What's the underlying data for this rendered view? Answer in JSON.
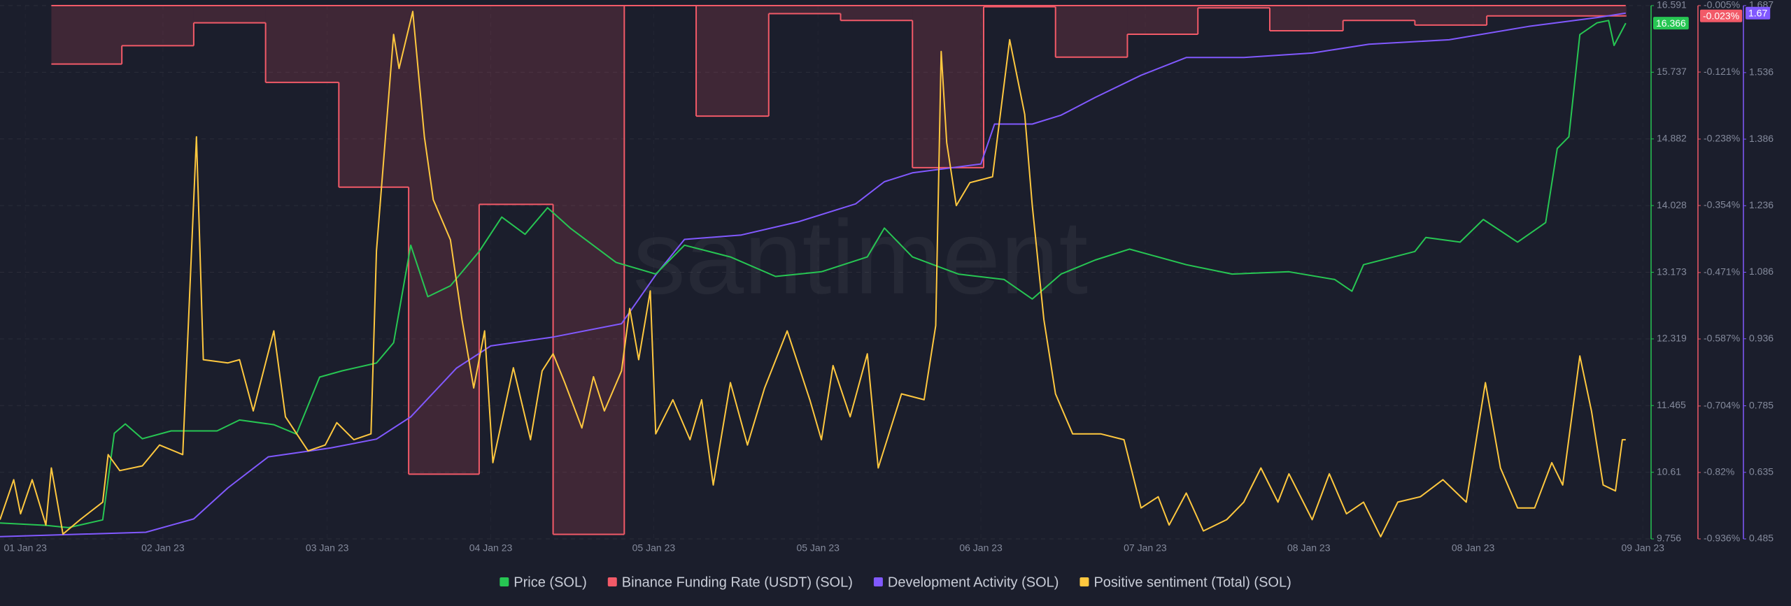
{
  "chart_data": {
    "type": "line",
    "watermark": "santiment",
    "xlim": [
      0,
      241
    ],
    "xticks": [
      {
        "value": 3.7,
        "label": "01 Jan 23"
      },
      {
        "value": 23.8,
        "label": "02 Jan 23"
      },
      {
        "value": 47.8,
        "label": "03 Jan 23"
      },
      {
        "value": 71.7,
        "label": "04 Jan 23"
      },
      {
        "value": 95.5,
        "label": "05 Jan 23"
      },
      {
        "value": 119.5,
        "label": "05 Jan 23"
      },
      {
        "value": 143.3,
        "label": "06 Jan 23"
      },
      {
        "value": 167.3,
        "label": "07 Jan 23"
      },
      {
        "value": 191.2,
        "label": "08 Jan 23"
      },
      {
        "value": 215.2,
        "label": "08 Jan 23"
      },
      {
        "value": 240,
        "label": "09 Jan 23"
      }
    ],
    "ylim": [
      9.756,
      16.591
    ],
    "yticks": [
      9.756,
      10.61,
      11.465,
      12.319,
      13.173,
      14.028,
      14.882,
      15.737,
      16.591
    ],
    "y2lim": [
      -0.936,
      -0.005
    ],
    "y2ticks": [
      {
        "value": -0.936,
        "label": "-0.936%"
      },
      {
        "value": -0.82,
        "label": "-0.82%"
      },
      {
        "value": -0.704,
        "label": "-0.704%"
      },
      {
        "value": -0.587,
        "label": "-0.587%"
      },
      {
        "value": -0.471,
        "label": "-0.471%"
      },
      {
        "value": -0.354,
        "label": "-0.354%"
      },
      {
        "value": -0.238,
        "label": "-0.238%"
      },
      {
        "value": -0.121,
        "label": "-0.121%"
      },
      {
        "value": -0.005,
        "label": "-0.005%"
      }
    ],
    "y3lim": [
      0.485,
      1.687
    ],
    "y3ticks": [
      0.485,
      0.635,
      0.785,
      0.936,
      1.086,
      1.236,
      1.386,
      1.536,
      1.687
    ],
    "y4lim": [
      0,
      100
    ],
    "grid": true,
    "series": [
      {
        "name": "Price (SOL)",
        "color": "#27c653",
        "axis": "y",
        "current": 16.366,
        "x": [
          0,
          6.7,
          10,
          15,
          16.7,
          18.3,
          20.8,
          25,
          31.7,
          35,
          40,
          43.3,
          46.7,
          50,
          55,
          57.5,
          60,
          62.5,
          65.8,
          70,
          73.3,
          76.7,
          80,
          83.3,
          90,
          95.8,
          100,
          106.7,
          113.3,
          120,
          126.7,
          129.2,
          133.3,
          140,
          146.7,
          150.8,
          155,
          160,
          165,
          173.3,
          180,
          188.3,
          195,
          197.5,
          199.2,
          206.7,
          208.3,
          213.3,
          216.7,
          221.7,
          225.8,
          227.5,
          229.2,
          230.8,
          233.3,
          235,
          235.8,
          237.5
        ],
        "values": [
          9.96,
          9.93,
          9.9,
          10.0,
          11.11,
          11.23,
          11.04,
          11.14,
          11.14,
          11.28,
          11.22,
          11.1,
          11.83,
          11.91,
          12.01,
          12.27,
          13.52,
          12.86,
          13.0,
          13.44,
          13.88,
          13.66,
          14.0,
          13.74,
          13.3,
          13.15,
          13.52,
          13.37,
          13.12,
          13.18,
          13.37,
          13.74,
          13.37,
          13.15,
          13.08,
          12.83,
          13.15,
          13.33,
          13.47,
          13.27,
          13.15,
          13.18,
          13.08,
          12.93,
          13.27,
          13.44,
          13.62,
          13.56,
          13.85,
          13.56,
          13.81,
          14.76,
          14.91,
          16.22,
          16.37,
          16.4,
          16.08,
          16.366
        ]
      },
      {
        "name": "Binance Funding Rate (USDT) (SOL)",
        "color": "#f25a68",
        "axis": "y2",
        "step": true,
        "fill": true,
        "current": {
          "value": -0.023,
          "label": "-0.023%"
        },
        "x": [
          7.5,
          17.8,
          28.3,
          38.8,
          49.5,
          59.7,
          70,
          80.8,
          91.2,
          101.7,
          112.3,
          122.8,
          133.3,
          143.7,
          154.2,
          164.7,
          175,
          185.5,
          196.2,
          206.7,
          217.2,
          237.5
        ],
        "values": [
          -0.107,
          -0.075,
          -0.035,
          -0.139,
          -0.322,
          -0.823,
          -0.352,
          -0.928,
          -0.005,
          -0.198,
          -0.019,
          -0.031,
          -0.288,
          -0.007,
          -0.095,
          -0.055,
          -0.009,
          -0.049,
          -0.031,
          -0.039,
          -0.023,
          -0.023
        ]
      },
      {
        "name": "Development Activity (SOL)",
        "color": "#8159ff",
        "axis": "y3",
        "current": 1.67,
        "x": [
          0,
          21.3,
          28.3,
          33.3,
          39.2,
          48.3,
          55,
          60,
          66.7,
          71.7,
          80.8,
          90.8,
          95.8,
          100,
          108.3,
          116.7,
          125,
          129.2,
          133.3,
          143.3,
          145.3,
          150.8,
          155,
          160,
          166.7,
          173.3,
          181.7,
          191.7,
          200,
          211.7,
          223.3,
          233.3,
          237.5
        ],
        "values": [
          0.49,
          0.5,
          0.53,
          0.6,
          0.67,
          0.69,
          0.71,
          0.76,
          0.87,
          0.92,
          0.94,
          0.97,
          1.08,
          1.16,
          1.17,
          1.2,
          1.24,
          1.29,
          1.31,
          1.33,
          1.42,
          1.42,
          1.44,
          1.48,
          1.53,
          1.57,
          1.57,
          1.58,
          1.6,
          1.61,
          1.64,
          1.66,
          1.67
        ]
      },
      {
        "name": "Positive sentiment (Total) (SOL)",
        "color": "#ffc83f",
        "axis": "y4",
        "x": [
          0,
          2,
          3,
          4.7,
          6.7,
          7.5,
          9.2,
          11.7,
          15,
          15.8,
          17.5,
          20.8,
          23.3,
          26.7,
          28.7,
          29.7,
          33.3,
          35,
          37,
          40,
          41.7,
          45,
          47.5,
          49.2,
          51.7,
          54.2,
          55,
          57.5,
          58.3,
          60.3,
          62,
          63.3,
          65.8,
          67.5,
          69.2,
          70.8,
          72,
          75,
          77.5,
          79.2,
          80.8,
          82.5,
          85,
          86.7,
          88.3,
          90.8,
          92,
          93.3,
          95,
          95.8,
          98.3,
          100.8,
          102.5,
          104.2,
          106.7,
          109.2,
          111.7,
          115,
          118.3,
          120,
          121.7,
          124.2,
          126.7,
          128.3,
          131.7,
          135,
          136.7,
          137.5,
          138.3,
          139.7,
          141.7,
          145,
          147.5,
          149.7,
          150.8,
          152.5,
          154.2,
          156.7,
          160.8,
          164.2,
          166.7,
          169.2,
          170.8,
          173.3,
          175.8,
          179.2,
          181.7,
          184.2,
          186.7,
          188.3,
          191.7,
          194.2,
          196.7,
          199.2,
          201.7,
          204.2,
          207.5,
          210.8,
          214.2,
          217,
          219.2,
          221.7,
          224.2,
          226.7,
          228.3,
          230.8,
          232.5,
          234.2,
          236,
          237,
          237.5
        ],
        "values": [
          3.6,
          11.1,
          4.7,
          11.1,
          2.6,
          13.3,
          0.9,
          3.6,
          6.9,
          15.8,
          12.8,
          13.7,
          17.6,
          15.8,
          75.4,
          33.6,
          33.0,
          33.6,
          24.0,
          39.0,
          22.9,
          16.5,
          17.6,
          21.8,
          18.6,
          19.7,
          54.0,
          94.6,
          88.2,
          98.9,
          75.4,
          63.6,
          56.1,
          41.1,
          28.3,
          39.0,
          14.3,
          32.1,
          18.6,
          31.5,
          34.7,
          29.3,
          20.8,
          30.4,
          24.0,
          31.5,
          43.2,
          33.6,
          46.5,
          19.7,
          26.1,
          18.6,
          26.1,
          10.1,
          29.3,
          17.6,
          28.3,
          39.0,
          26.1,
          18.6,
          32.5,
          22.9,
          34.7,
          13.3,
          27.2,
          26.1,
          40.0,
          91.4,
          74.3,
          62.5,
          66.8,
          67.9,
          93.6,
          79.6,
          62.5,
          41.1,
          27.2,
          19.7,
          19.7,
          18.6,
          5.8,
          7.9,
          2.6,
          8.6,
          1.5,
          3.6,
          6.9,
          13.3,
          6.9,
          12.2,
          3.6,
          12.2,
          4.7,
          6.9,
          0.4,
          6.9,
          7.9,
          11.1,
          6.9,
          29.3,
          13.3,
          5.8,
          5.8,
          14.3,
          10.1,
          34.3,
          24.0,
          10.1,
          9.0,
          18.6,
          18.6
        ]
      }
    ]
  }
}
